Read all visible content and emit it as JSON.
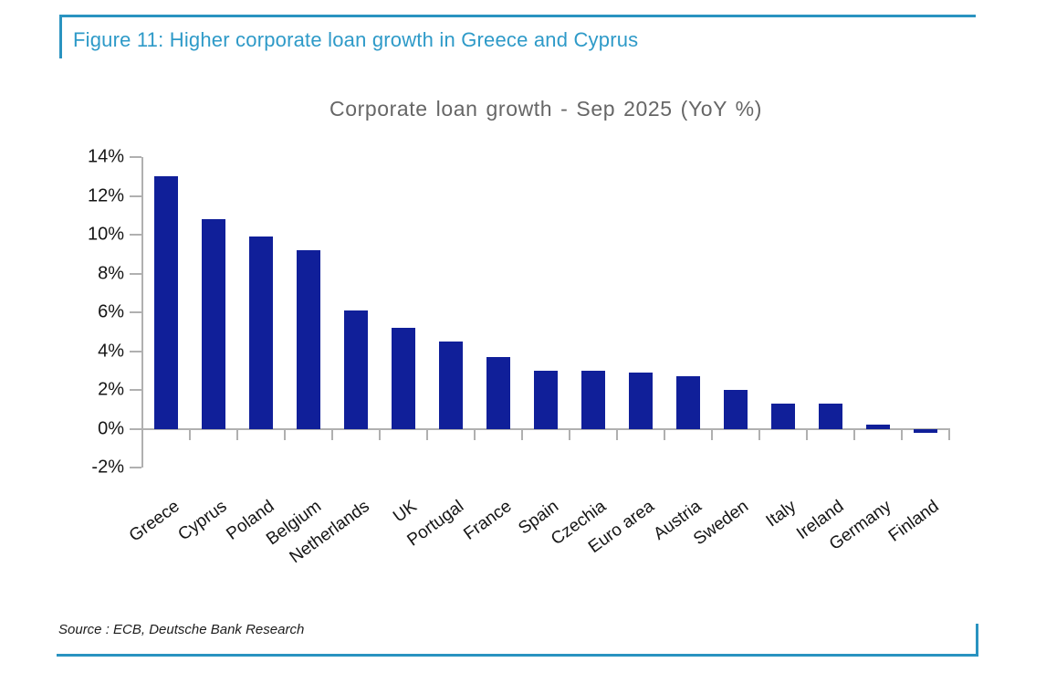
{
  "figure": {
    "title": "Figure 11: Higher corporate loan growth in Greece and Cyprus",
    "source": "Source : ECB, Deutsche Bank Research"
  },
  "colors": {
    "accent_teal": "#2A93C0",
    "figure_title_text": "#2E9AC8",
    "chart_title_text": "#666666",
    "bar": "#101F99",
    "axis": "#B0B0B0",
    "tick_label_text": "#151515"
  },
  "chart_data": {
    "type": "bar",
    "title": "Corporate loan growth - Sep 2025 (YoY %)",
    "categories": [
      "Greece",
      "Cyprus",
      "Poland",
      "Belgium",
      "Netherlands",
      "UK",
      "Portugal",
      "France",
      "Spain",
      "Czechia",
      "Euro area",
      "Austria",
      "Sweden",
      "Italy",
      "Ireland",
      "Germany",
      "Finland"
    ],
    "values": [
      13.0,
      10.8,
      9.9,
      9.2,
      6.1,
      5.2,
      4.5,
      3.7,
      3.0,
      3.0,
      2.9,
      2.7,
      2.0,
      1.3,
      1.3,
      0.2,
      -0.2
    ],
    "xlabel": "",
    "ylabel": "",
    "ylim": [
      -2,
      14
    ],
    "yticks": [
      {
        "value": 14,
        "label": "14%"
      },
      {
        "value": 12,
        "label": "12%"
      },
      {
        "value": 10,
        "label": "10%"
      },
      {
        "value": 8,
        "label": "8%"
      },
      {
        "value": 6,
        "label": "6%"
      },
      {
        "value": 4,
        "label": "4%"
      },
      {
        "value": 2,
        "label": "2%"
      },
      {
        "value": 0,
        "label": "0%"
      },
      {
        "value": -2,
        "label": "-2%"
      }
    ],
    "grid": false,
    "legend": false,
    "bar_color": "#101F99"
  }
}
